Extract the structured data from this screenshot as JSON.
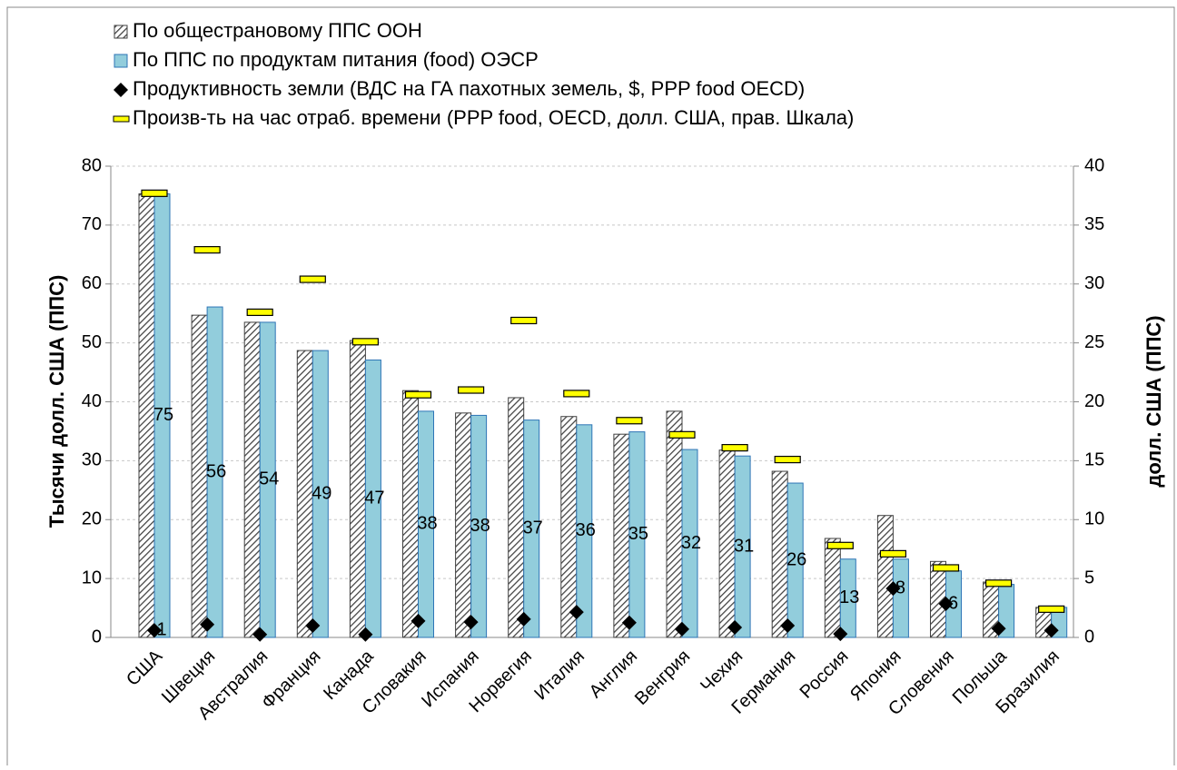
{
  "chart_data": {
    "type": "bar",
    "y_label": "Тысячи долл. США (ППС)",
    "y2_label": "долл. США (ППС)",
    "categories": [
      "США",
      "Швеция",
      "Австралия",
      "Франция",
      "Канада",
      "Словакия",
      "Испания",
      "Норвегия",
      "Италия",
      "Англия",
      "Венгрия",
      "Чехия",
      "Германия",
      "Россия",
      "Япония",
      "Словения",
      "Польша",
      "Бразилия"
    ],
    "ylim": [
      0,
      80
    ],
    "yticks": [
      0,
      10,
      20,
      30,
      40,
      50,
      60,
      70,
      80
    ],
    "y2lim": [
      0,
      40
    ],
    "y2ticks": [
      0,
      5,
      10,
      15,
      20,
      25,
      30,
      35,
      40
    ],
    "grid": true,
    "series": [
      {
        "name": "По общестрановому ППС ООН",
        "type": "bar",
        "color": "#404040",
        "values": [
          75.3,
          54.7,
          53.5,
          48.7,
          50.4,
          41.9,
          38.1,
          40.7,
          37.5,
          34.5,
          38.4,
          31.8,
          28.2,
          16.8,
          20.7,
          12.9,
          9.4,
          5.1
        ]
      },
      {
        "name": "По ППС по продуктам питания (food) ОЭСР",
        "type": "bar",
        "color": "#92cddc",
        "values": [
          75.3,
          56.1,
          53.5,
          48.7,
          47.1,
          38.4,
          37.7,
          36.9,
          36.1,
          34.9,
          31.9,
          30.8,
          26.2,
          13.3,
          13.3,
          11.3,
          9.0,
          5.1
        ],
        "value_labels": [
          "75",
          "56",
          "54",
          "49",
          "47",
          "38",
          "38",
          "37",
          "36",
          "35",
          "32",
          "31",
          "26",
          "13",
          null,
          null,
          null,
          null
        ]
      },
      {
        "name": "Продуктивность земли (ВДС на ГА пахотных земель, $, PPP food OECD)",
        "type": "diamond",
        "color": "#000000",
        "values": [
          1.2,
          2.2,
          0.5,
          2.0,
          0.5,
          2.8,
          2.6,
          3.1,
          4.3,
          2.5,
          1.4,
          1.7,
          2.0,
          0.6,
          8.3,
          5.7,
          1.5,
          1.2
        ],
        "value_labels": [
          "1",
          null,
          null,
          null,
          null,
          null,
          null,
          null,
          null,
          null,
          null,
          null,
          null,
          null,
          "8",
          "6",
          null,
          null
        ]
      },
      {
        "name": "Произв-ть на час отраб. времени (PPP food, OECD, долл. США, прав. Шкала)",
        "type": "dash",
        "color": "#ffff00",
        "axis": "y2",
        "values": [
          37.7,
          32.9,
          27.6,
          30.4,
          25.1,
          20.6,
          21.0,
          26.9,
          20.7,
          18.4,
          17.2,
          16.1,
          15.1,
          7.8,
          7.1,
          5.9,
          4.6,
          2.4
        ]
      }
    ]
  }
}
